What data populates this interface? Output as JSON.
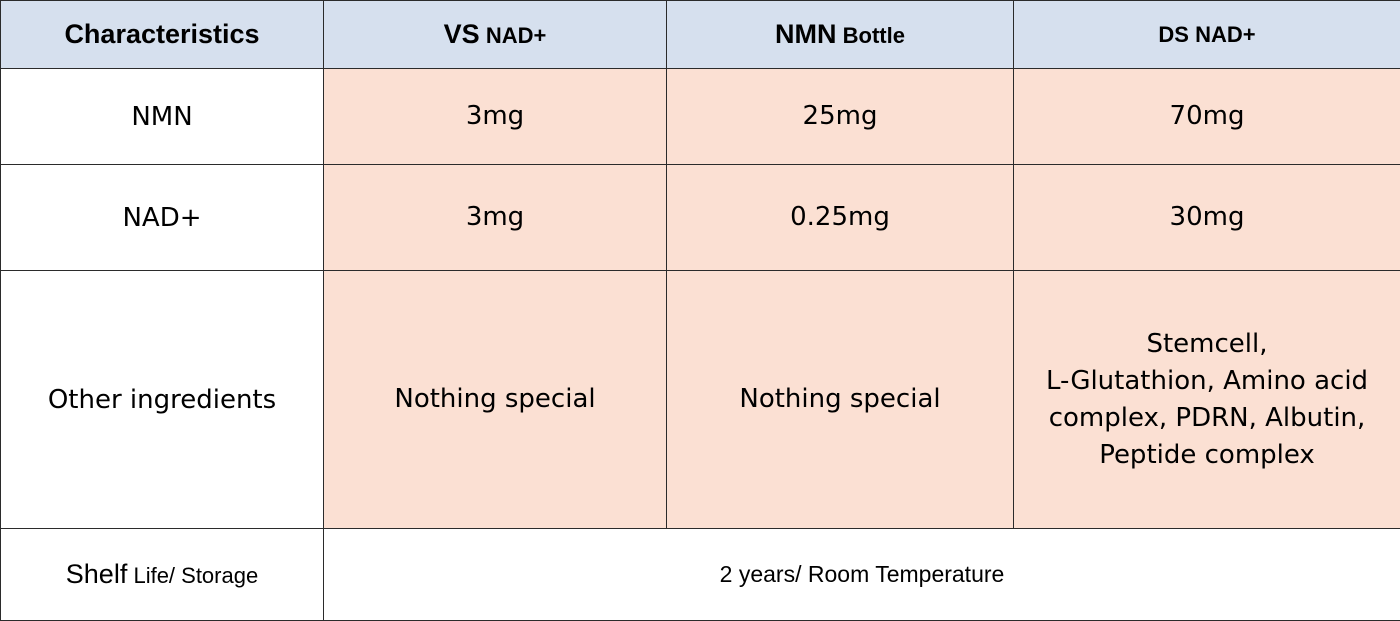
{
  "table": {
    "header": {
      "characteristics": "Characteristics",
      "col1_main": "VS",
      "col1_sub": "NAD+",
      "col2_main": "NMN",
      "col2_sub": "Bottle",
      "col3": "DS NAD+"
    },
    "rows": [
      {
        "label": "NMN",
        "values": [
          "3mg",
          "25mg",
          "70mg"
        ]
      },
      {
        "label": "NAD+",
        "values": [
          "3mg",
          "0.25mg",
          "30mg"
        ]
      }
    ],
    "other": {
      "label": "Other ingredients",
      "values": [
        "Nothing special",
        "Nothing special"
      ],
      "ds_lines": [
        "Stemcell,",
        "L-Glutathion, Amino acid",
        "complex, PDRN, Albutin,",
        "Peptide complex"
      ]
    },
    "shelf": {
      "label_main": "Shelf",
      "label_rest": "Life/ Storage",
      "value": "2 years/ Room Temperature"
    }
  },
  "colors": {
    "header_bg": "#d6e0ee",
    "value_bg": "#fbe0d3",
    "border": "#2b2b2b"
  }
}
